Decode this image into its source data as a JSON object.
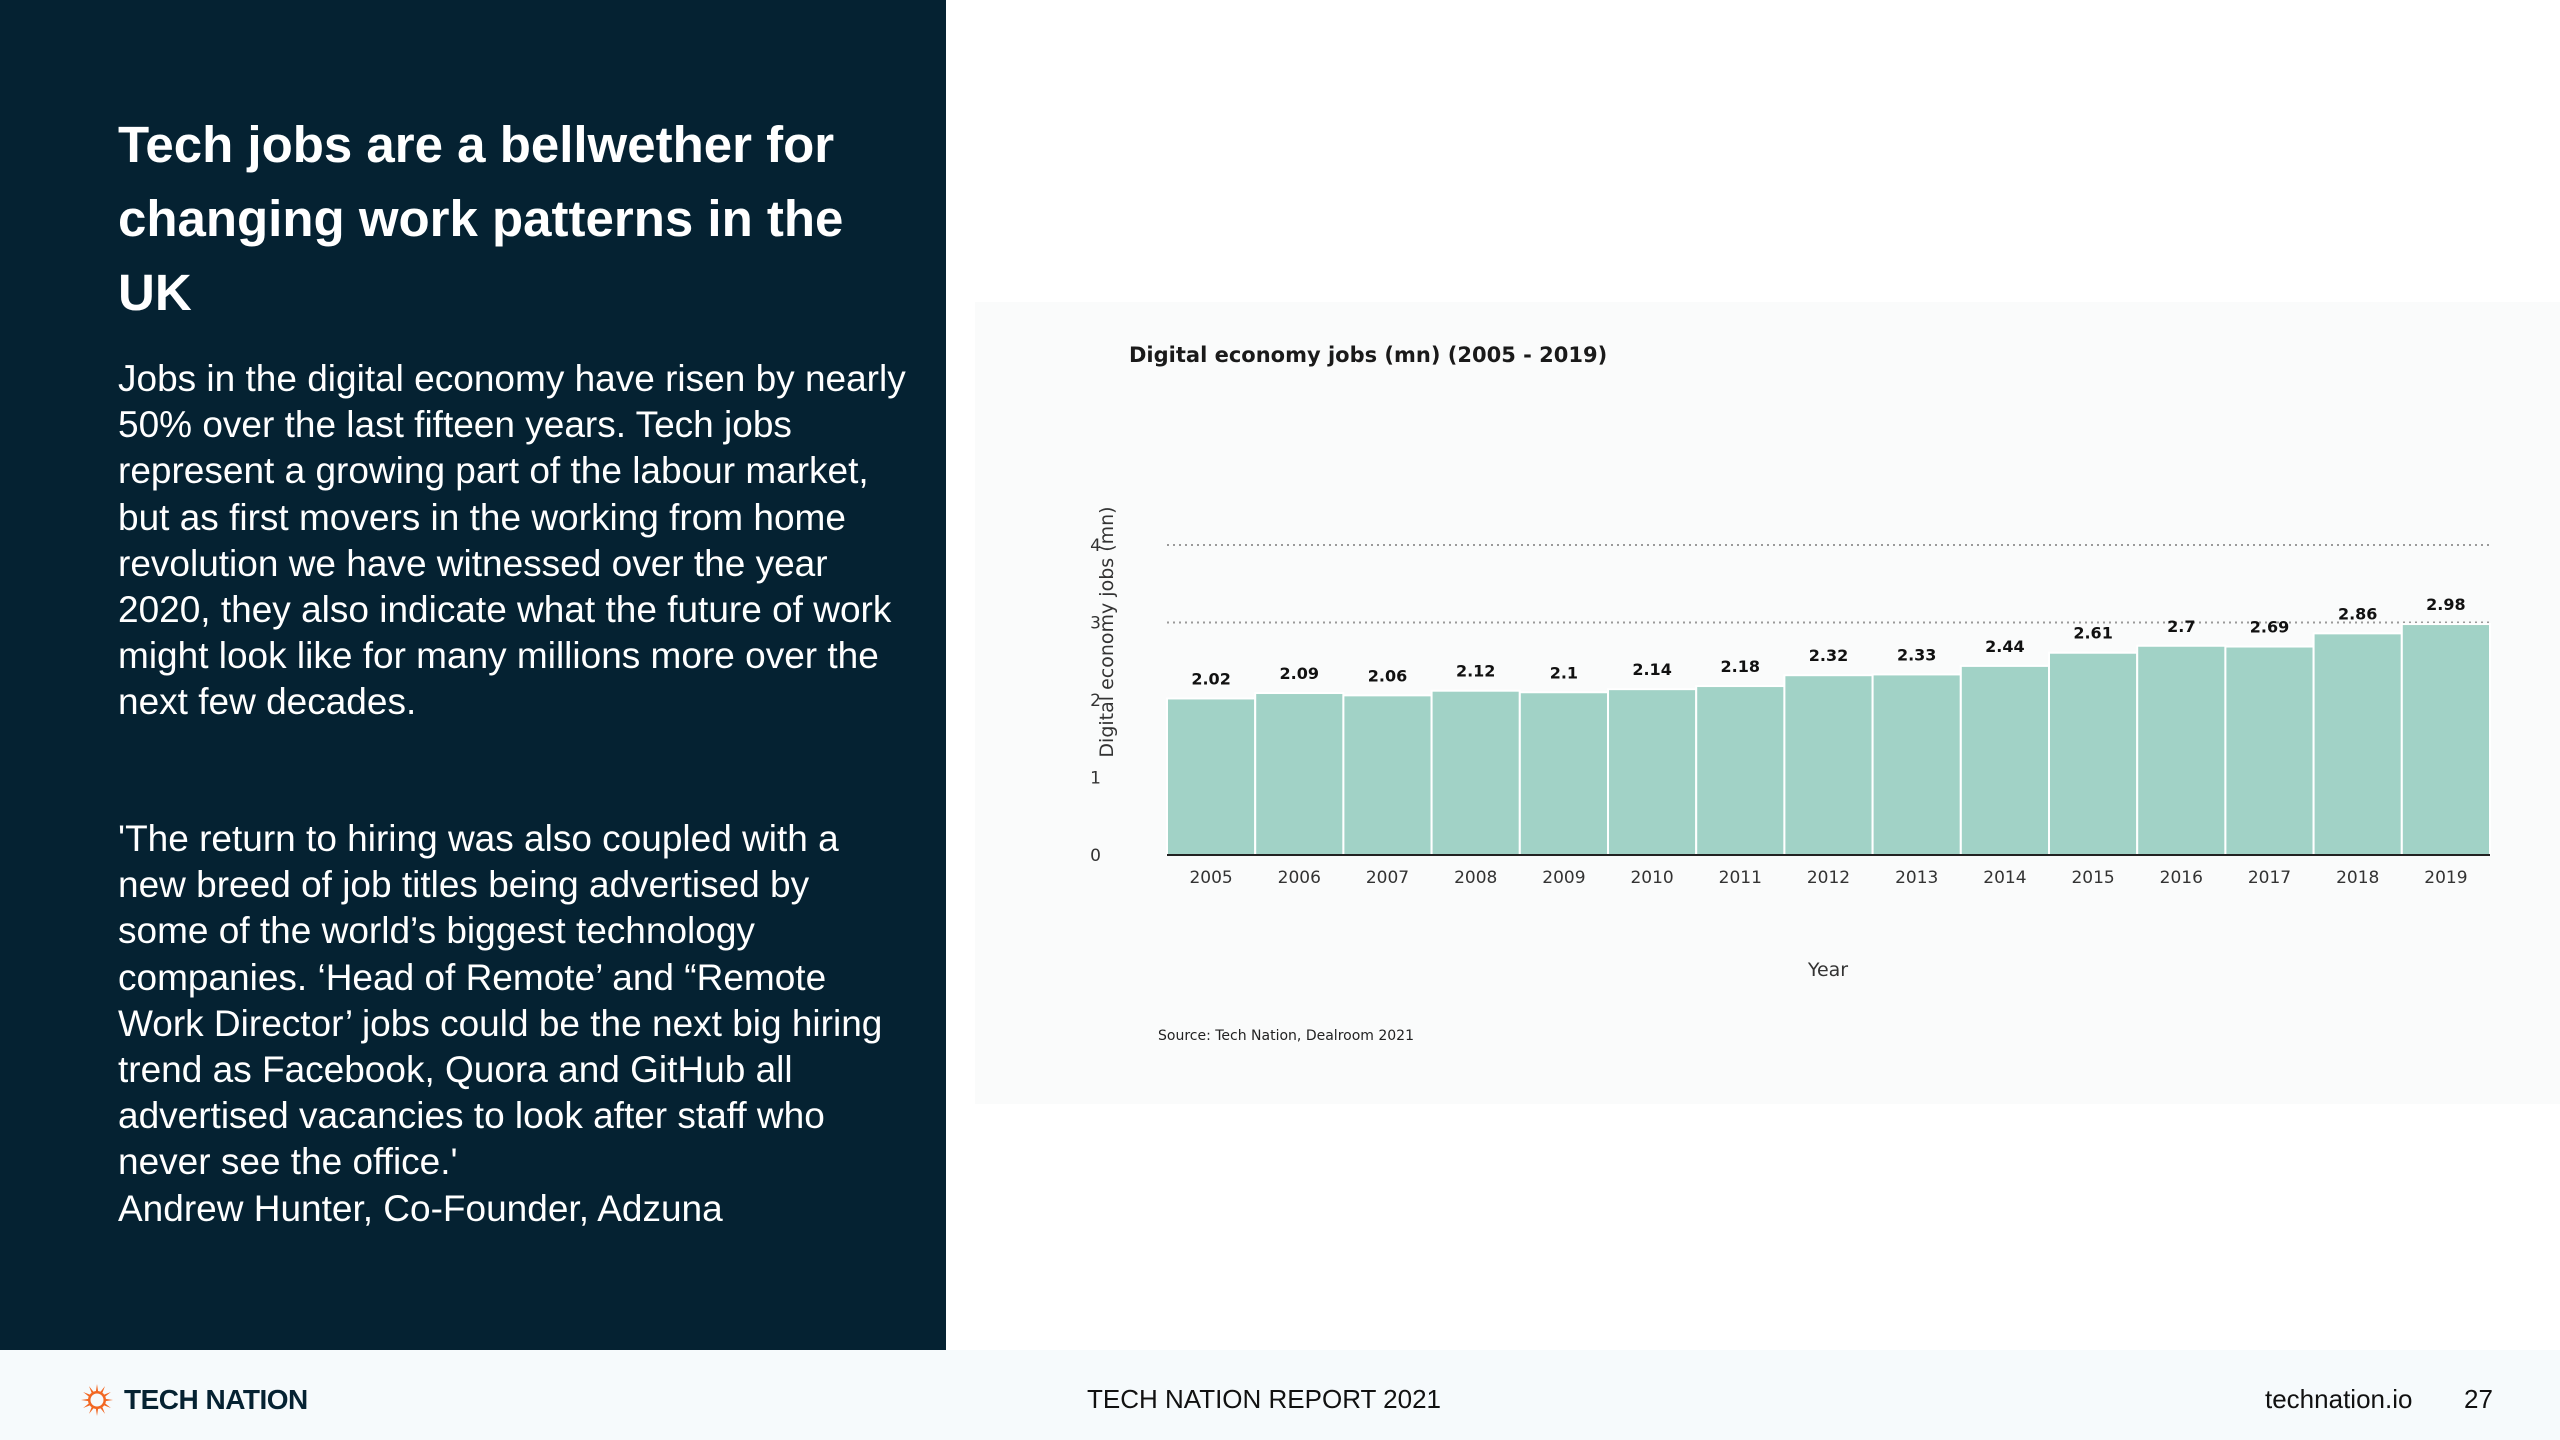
{
  "slide": {
    "headline": "Tech jobs are a bellwether for changing work patterns in the UK",
    "body": "Jobs in the digital economy have risen by nearly 50% over the last fifteen years. Tech jobs represent a growing part of the labour market, but as first movers in the working from home revolution we have witnessed over the year 2020, they also indicate what the future of work might look like for many millions more over the next few decades.",
    "quote": "'The return to hiring was also coupled with a new breed of job titles being advertised by some of the world’s biggest technology companies. ‘Head of Remote’ and “Remote Work Director’ jobs could be the next big hiring trend as Facebook, Quora and GitHub all advertised vacancies to look after staff who never see the office.'",
    "quote_attribution": "Andrew Hunter, Co-Founder, Adzuna"
  },
  "chart_data": {
    "type": "bar",
    "title": "Digital economy jobs (mn) (2005 - 2019)",
    "xlabel": "Year",
    "ylabel": "Digital economy jobs (mn)",
    "categories": [
      "2005",
      "2006",
      "2007",
      "2008",
      "2009",
      "2010",
      "2011",
      "2012",
      "2013",
      "2014",
      "2015",
      "2016",
      "2017",
      "2018",
      "2019"
    ],
    "values": [
      2.02,
      2.09,
      2.06,
      2.12,
      2.1,
      2.14,
      2.18,
      2.32,
      2.33,
      2.44,
      2.61,
      2.7,
      2.69,
      2.86,
      2.98
    ],
    "value_labels": [
      "2.02",
      "2.09",
      "2.06",
      "2.12",
      "2.1",
      "2.14",
      "2.18",
      "2.32",
      "2.33",
      "2.44",
      "2.61",
      "2.7",
      "2.69",
      "2.86",
      "2.98"
    ],
    "ylim": [
      0,
      4
    ],
    "yticks": [
      0,
      1,
      2,
      3,
      4
    ],
    "gridlines": [
      3,
      4
    ],
    "bar_color": "#a1d2c6",
    "source": "Source: Tech Nation, Dealroom 2021"
  },
  "footer": {
    "logo_text": "TECH NATION",
    "report_title": "TECH NATION REPORT 2021",
    "website": "technation.io",
    "page_number": "27"
  },
  "colors": {
    "panel_background": "#052232",
    "logo_orange": "#f26722"
  }
}
